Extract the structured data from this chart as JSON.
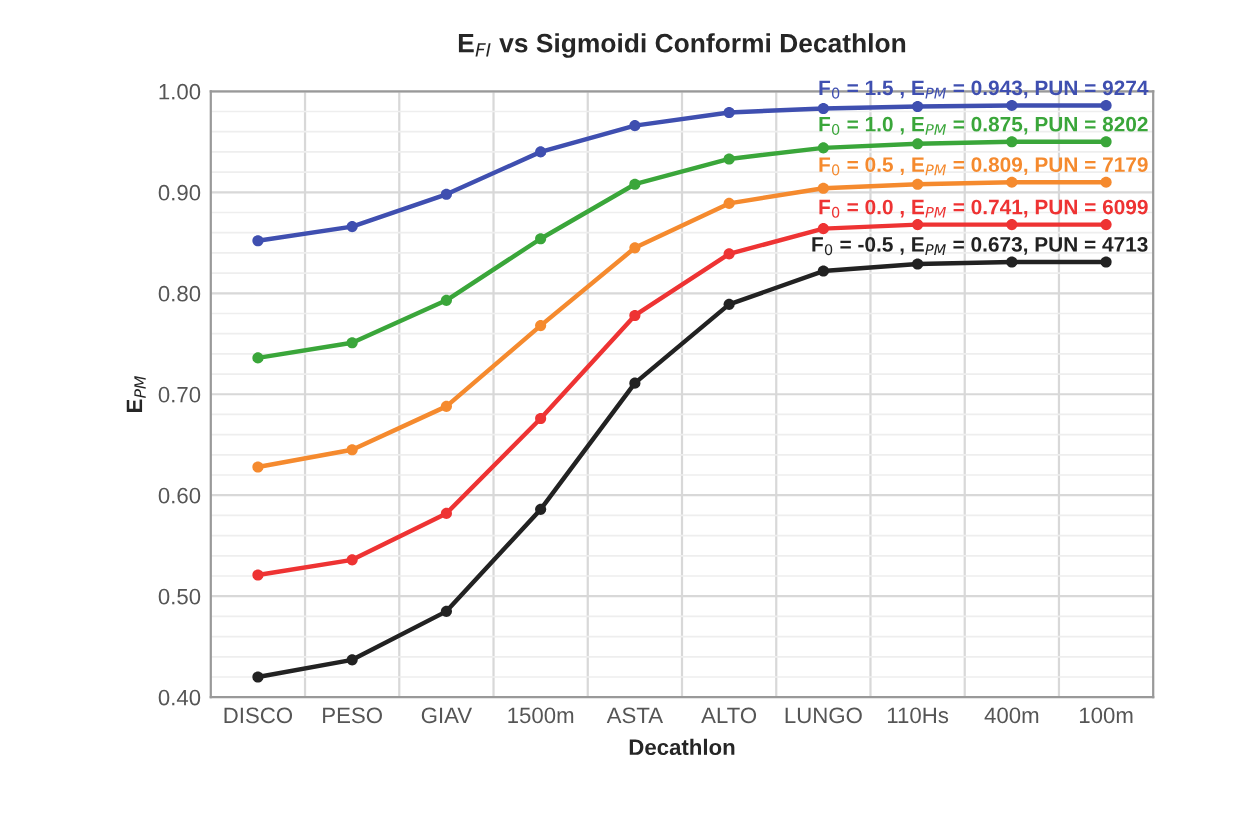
{
  "chart_data": {
    "type": "line",
    "title": "E$_{FI}$ vs Sigmoidi Conformi Decathlon",
    "xlabel": "Decathlon",
    "ylabel": "E$_{PM}$",
    "categories": [
      "DISCO",
      "PESO",
      "GIAV",
      "1500m",
      "ASTA",
      "ALTO",
      "LUNGO",
      "110Hs",
      "400m",
      "100m"
    ],
    "series": [
      {
        "name": "F$_{0}$ = 1.5 , E$_{PM}$ = 0.943, PUN = 9274",
        "color": "#3f4fb0",
        "values": [
          0.852,
          0.866,
          0.898,
          0.94,
          0.966,
          0.979,
          0.983,
          0.985,
          0.986,
          0.986
        ]
      },
      {
        "name": "F$_{0}$ = 1.0 , E$_{PM}$ = 0.875, PUN = 8202",
        "color": "#3aa63a",
        "values": [
          0.736,
          0.751,
          0.793,
          0.854,
          0.908,
          0.933,
          0.944,
          0.948,
          0.95,
          0.95
        ]
      },
      {
        "name": "F$_{0}$ = 0.5 , E$_{PM}$ = 0.809, PUN = 7179",
        "color": "#f58a2e",
        "values": [
          0.628,
          0.645,
          0.688,
          0.768,
          0.845,
          0.889,
          0.904,
          0.908,
          0.91,
          0.91
        ]
      },
      {
        "name": "F$_{0}$ = 0.0 , E$_{PM}$ = 0.741, PUN = 6099",
        "color": "#ee3333",
        "values": [
          0.521,
          0.536,
          0.582,
          0.676,
          0.778,
          0.839,
          0.864,
          0.868,
          0.868,
          0.868
        ]
      },
      {
        "name": "F$_{0}$ = -0.5 , E$_{PM}$ = 0.673, PUN = 4713",
        "color": "#222222",
        "values": [
          0.42,
          0.437,
          0.485,
          0.586,
          0.711,
          0.789,
          0.822,
          0.829,
          0.831,
          0.831
        ]
      }
    ],
    "ylim": [
      0.4,
      1.0
    ],
    "yticks": [
      {
        "value": 0.4,
        "label": "0.40"
      },
      {
        "value": 0.5,
        "label": "0.50"
      },
      {
        "value": 0.6,
        "label": "0.60"
      },
      {
        "value": 0.7,
        "label": "0.70"
      },
      {
        "value": 0.8,
        "label": "0.80"
      },
      {
        "value": 0.9,
        "label": "0.90"
      },
      {
        "value": 1.0,
        "label": "1.00"
      }
    ],
    "grid": true,
    "marker": "circle",
    "line_style": "solid"
  }
}
